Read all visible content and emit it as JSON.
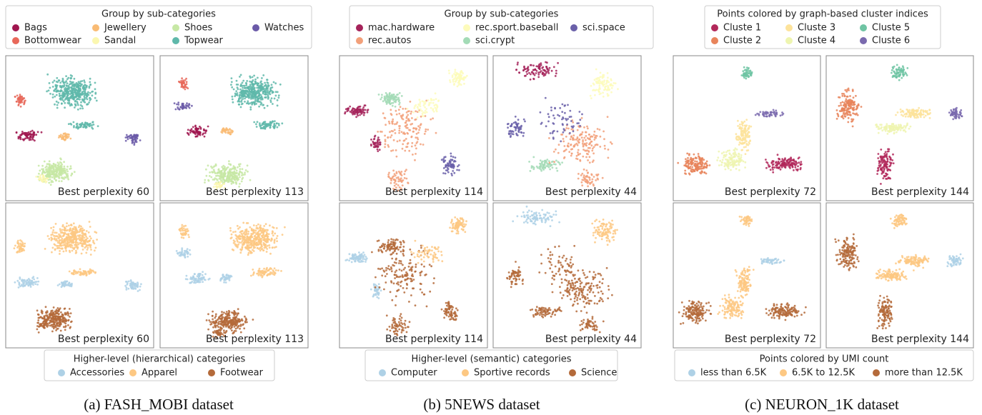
{
  "panels": [
    {
      "legend_top": {
        "title": "Group by sub-categories",
        "items": [
          {
            "name": "Bags",
            "color": "#a0164f"
          },
          {
            "name": "Bottomwear",
            "color": "#e8685a"
          },
          {
            "name": "Jewellery",
            "color": "#f9bb74"
          },
          {
            "name": "Sandal",
            "color": "#fbf7b0"
          },
          {
            "name": "Shoes",
            "color": "#c7e8a5"
          },
          {
            "name": "Topwear",
            "color": "#5fb8aa"
          },
          {
            "name": "Watches",
            "color": "#6b5aa8"
          }
        ]
      },
      "plots": [
        {
          "label": "Best perplexity 60"
        },
        {
          "label": "Best perplexity 113"
        },
        {
          "label": "Best perplexity 60"
        },
        {
          "label": "Best perplexity 113"
        }
      ],
      "legend_bottom": {
        "title": "Higher-level (hierarchical) categories",
        "items": [
          {
            "name": "Accessories",
            "color": "#aed1e6"
          },
          {
            "name": "Apparel",
            "color": "#fdc883"
          },
          {
            "name": "Footwear",
            "color": "#b46a3a"
          }
        ]
      },
      "caption": "(a) FASH_MOBI dataset"
    },
    {
      "legend_top": {
        "title": "Group by sub-categories",
        "items": [
          {
            "name": "mac.hardware",
            "color": "#a5235a"
          },
          {
            "name": "rec.autos",
            "color": "#f2a07a"
          },
          {
            "name": "rec.sport.baseball",
            "color": "#fdfbbb"
          },
          {
            "name": "sci.crypt",
            "color": "#a3dbb6"
          },
          {
            "name": "sci.space",
            "color": "#6a60a9"
          }
        ]
      },
      "plots": [
        {
          "label": "Best perplexity 114"
        },
        {
          "label": "Best perplexity 44"
        },
        {
          "label": "Best perplexity 114"
        },
        {
          "label": "Best perplexity 44"
        }
      ],
      "legend_bottom": {
        "title": "Higher-level (semantic) categories",
        "items": [
          {
            "name": "Computer",
            "color": "#aed1e6"
          },
          {
            "name": "Sportive records",
            "color": "#fdc883"
          },
          {
            "name": "Science",
            "color": "#b46a3a"
          }
        ]
      },
      "caption": "(b) 5NEWS dataset"
    },
    {
      "legend_top": {
        "title": "Points colored by graph-based cluster indices",
        "items": [
          {
            "name": "Cluste 1",
            "color": "#b2285a"
          },
          {
            "name": "Cluste 2",
            "color": "#e8845b"
          },
          {
            "name": "Cluste 3",
            "color": "#fde39b"
          },
          {
            "name": "Cluste 4",
            "color": "#eef5b0"
          },
          {
            "name": "Cluste 5",
            "color": "#6fc4a3"
          },
          {
            "name": "Cluste 6",
            "color": "#7a6aae"
          }
        ]
      },
      "plots": [
        {
          "label": "Best perplexity 72"
        },
        {
          "label": "Best perplexity 144"
        },
        {
          "label": "Best perplexity 72"
        },
        {
          "label": "Best perplexity 144"
        }
      ],
      "legend_bottom": {
        "title": "Points colored by UMI count",
        "items": [
          {
            "name": "less than 6.5K",
            "color": "#aed1e6"
          },
          {
            "name": "6.5K to 12.5K",
            "color": "#fdc883"
          },
          {
            "name": "more than 12.5K",
            "color": "#b46a3a"
          }
        ]
      },
      "caption": "(c) NEURON_1K dataset"
    }
  ]
}
